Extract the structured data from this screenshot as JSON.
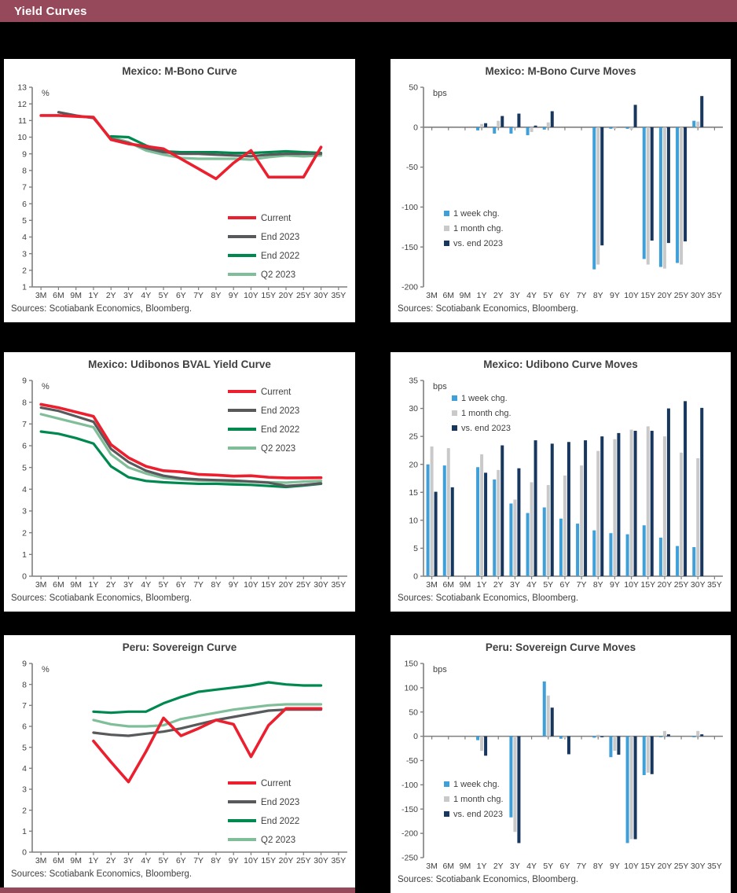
{
  "header": {
    "title": "Yield Curves"
  },
  "colors": {
    "header_bar": "#95495B",
    "current_red": "#EC1F2F",
    "end2023_gray": "#58595B",
    "end2022_green": "#00894E",
    "q2_2023_green": "#7FBE98",
    "week_blue": "#3F9FD8",
    "month_gray": "#C9C9C9",
    "vs_end_navy": "#17375E",
    "axis_gray": "#7f7f7f",
    "text_gray": "#404040"
  },
  "sources_note": "Sources: Scotiabank Economics, Bloomberg.",
  "chart_data": [
    {
      "type": "line",
      "title": "Mexico: M-Bono Curve",
      "unit": "%",
      "sources": "Sources: Scotiabank Economics, Bloomberg.",
      "categories": [
        "3M",
        "6M",
        "9M",
        "1Y",
        "2Y",
        "3Y",
        "4Y",
        "5Y",
        "6Y",
        "7Y",
        "8Y",
        "9Y",
        "10Y",
        "15Y",
        "20Y",
        "25Y",
        "30Y",
        "35Y"
      ],
      "ylim": [
        1,
        13
      ],
      "ystep": 1,
      "legend_position": "bottom-right",
      "series": [
        {
          "name": "Current",
          "color": "#EC1F2F",
          "values": [
            11.3,
            11.3,
            11.25,
            11.2,
            9.85,
            9.6,
            9.45,
            9.3,
            8.7,
            8.1,
            7.5,
            8.45,
            9.2,
            7.6,
            7.6,
            7.6,
            9.4,
            null
          ]
        },
        {
          "name": "End 2023",
          "color": "#58595B",
          "values": [
            null,
            11.5,
            11.3,
            11.15,
            9.9,
            9.65,
            9.35,
            9.1,
            9.0,
            9.0,
            8.95,
            8.9,
            8.85,
            8.95,
            9.0,
            9.0,
            9.0,
            null
          ]
        },
        {
          "name": "End 2022",
          "color": "#00894E",
          "values": [
            null,
            null,
            null,
            null,
            10.05,
            10.0,
            9.5,
            9.15,
            9.1,
            9.1,
            9.1,
            9.05,
            9.05,
            9.1,
            9.15,
            9.1,
            9.05,
            null
          ]
        },
        {
          "name": "Q2 2023",
          "color": "#7FBE98",
          "values": [
            null,
            null,
            null,
            null,
            10.0,
            9.7,
            9.2,
            8.95,
            8.75,
            8.7,
            8.7,
            8.7,
            8.65,
            8.8,
            8.9,
            8.85,
            8.9,
            null
          ]
        }
      ]
    },
    {
      "type": "bar",
      "title": "Mexico: M-Bono Curve Moves",
      "unit": "bps",
      "sources": "Sources: Scotiabank Economics, Bloomberg.",
      "categories": [
        "3M",
        "6M",
        "9M",
        "1Y",
        "2Y",
        "3Y",
        "4Y",
        "5Y",
        "6Y",
        "7Y",
        "8Y",
        "9Y",
        "10Y",
        "15Y",
        "20Y",
        "25Y",
        "30Y",
        "35Y"
      ],
      "ylim": [
        -200,
        50
      ],
      "ystep": 50,
      "legend_position": "bottom-left",
      "series": [
        {
          "name": "1 week chg.",
          "color": "#3F9FD8",
          "values": [
            0,
            0,
            0,
            -4,
            -8,
            -8,
            -10,
            -3,
            0,
            0,
            -178,
            -2,
            -2,
            -165,
            -175,
            -170,
            8,
            0
          ]
        },
        {
          "name": "1 month chg.",
          "color": "#C9C9C9",
          "values": [
            0,
            0,
            0,
            4,
            8,
            1,
            -6,
            6,
            0,
            0,
            -172,
            -2,
            -3,
            -172,
            -177,
            -172,
            7,
            0
          ]
        },
        {
          "name": "vs. end 2023",
          "color": "#17375E",
          "values": [
            0,
            0,
            0,
            5,
            14,
            17,
            2,
            20,
            0,
            0,
            -148,
            0,
            28,
            -142,
            -145,
            -143,
            39,
            0
          ]
        }
      ]
    },
    {
      "type": "line",
      "title": "Mexico: Udibonos BVAL Yield Curve",
      "unit": "%",
      "sources": "Sources: Scotiabank Economics, Bloomberg.",
      "categories": [
        "3M",
        "6M",
        "9M",
        "1Y",
        "2Y",
        "3Y",
        "4Y",
        "5Y",
        "6Y",
        "7Y",
        "8Y",
        "9Y",
        "10Y",
        "15Y",
        "20Y",
        "25Y",
        "30Y",
        "35Y"
      ],
      "ylim": [
        0,
        9
      ],
      "ystep": 1,
      "legend_position": "top-right",
      "series": [
        {
          "name": "Current",
          "color": "#EC1F2F",
          "values": [
            7.9,
            7.75,
            7.55,
            7.35,
            6.05,
            5.45,
            5.05,
            4.85,
            4.8,
            4.68,
            4.65,
            4.6,
            4.62,
            4.55,
            4.52,
            4.52,
            4.53,
            null
          ]
        },
        {
          "name": "End 2023",
          "color": "#58595B",
          "values": [
            7.75,
            7.6,
            7.35,
            7.1,
            5.85,
            5.25,
            4.85,
            4.62,
            4.5,
            4.45,
            4.42,
            4.4,
            4.35,
            4.3,
            4.15,
            4.2,
            4.27,
            null
          ]
        },
        {
          "name": "End 2022",
          "color": "#00894E",
          "values": [
            6.65,
            6.55,
            6.35,
            6.1,
            5.05,
            4.55,
            4.38,
            4.32,
            4.28,
            4.25,
            4.25,
            4.22,
            4.2,
            4.15,
            4.1,
            4.17,
            4.25,
            null
          ]
        },
        {
          "name": "Q2 2023",
          "color": "#7FBE98",
          "values": [
            7.45,
            7.25,
            7.05,
            6.85,
            5.6,
            5.0,
            4.72,
            4.52,
            4.45,
            4.4,
            4.38,
            4.35,
            4.35,
            4.32,
            4.3,
            4.35,
            4.38,
            null
          ]
        }
      ]
    },
    {
      "type": "bar",
      "title": "Mexico: Udibono Curve Moves",
      "unit": "bps",
      "sources": "Sources: Scotiabank Economics, Bloomberg.",
      "categories": [
        "3M",
        "6M",
        "9M",
        "1Y",
        "2Y",
        "3Y",
        "4Y",
        "5Y",
        "6Y",
        "7Y",
        "8Y",
        "9Y",
        "10Y",
        "15Y",
        "20Y",
        "25Y",
        "30Y",
        "35Y"
      ],
      "ylim": [
        0,
        35
      ],
      "ystep": 5,
      "legend_position": "top-left",
      "series": [
        {
          "name": "1 week chg.",
          "color": "#3F9FD8",
          "values": [
            20,
            19.8,
            0,
            19.5,
            17.3,
            13,
            11.3,
            12.3,
            10.3,
            9.4,
            8.2,
            7.7,
            7.5,
            9.1,
            6.9,
            5.4,
            5.2,
            0
          ]
        },
        {
          "name": "1 month chg.",
          "color": "#C9C9C9",
          "values": [
            23.2,
            22.9,
            0,
            21.8,
            19,
            13.7,
            16.8,
            16.3,
            18,
            19.8,
            22.4,
            24.5,
            26.2,
            26.8,
            25,
            22.1,
            21.1,
            0
          ]
        },
        {
          "name": "vs. end 2023",
          "color": "#17375E",
          "values": [
            15.1,
            15.9,
            0,
            18.5,
            23.4,
            19.3,
            24.3,
            23.7,
            24,
            24.3,
            25,
            25.6,
            26,
            26,
            30,
            31.3,
            30.1,
            0
          ]
        }
      ]
    },
    {
      "type": "line",
      "title": "Peru: Sovereign Curve",
      "unit": "%",
      "sources": "Sources: Scotiabank Economics, Bloomberg.",
      "categories": [
        "3M",
        "6M",
        "9M",
        "1Y",
        "2Y",
        "3Y",
        "4Y",
        "5Y",
        "6Y",
        "7Y",
        "8Y",
        "9Y",
        "10Y",
        "15Y",
        "20Y",
        "25Y",
        "30Y",
        "35Y"
      ],
      "ylim": [
        0,
        9
      ],
      "ystep": 1,
      "legend_position": "bottom-right",
      "series": [
        {
          "name": "Current",
          "color": "#EC1F2F",
          "values": [
            null,
            null,
            null,
            5.3,
            4.3,
            3.35,
            4.8,
            6.4,
            5.55,
            5.9,
            6.3,
            6.1,
            4.55,
            6.05,
            6.85,
            6.85,
            6.85,
            null
          ]
        },
        {
          "name": "End 2023",
          "color": "#58595B",
          "values": [
            null,
            null,
            null,
            5.7,
            5.6,
            5.55,
            5.65,
            5.75,
            5.9,
            6.1,
            6.3,
            6.45,
            6.6,
            6.75,
            6.8,
            6.8,
            6.8,
            null
          ]
        },
        {
          "name": "End 2022",
          "color": "#00894E",
          "values": [
            null,
            null,
            null,
            6.7,
            6.65,
            6.7,
            6.7,
            7.1,
            7.4,
            7.65,
            7.75,
            7.85,
            7.95,
            8.1,
            8.0,
            7.95,
            7.95,
            null
          ]
        },
        {
          "name": "Q2 2023",
          "color": "#7FBE98",
          "values": [
            null,
            null,
            null,
            6.3,
            6.1,
            6.0,
            6.0,
            6.05,
            6.35,
            6.5,
            6.65,
            6.8,
            6.9,
            7.0,
            7.05,
            7.05,
            7.05,
            null
          ]
        }
      ]
    },
    {
      "type": "bar",
      "title": "Peru: Sovereign Curve Moves",
      "unit": "bps",
      "sources": "Sources: Scotiabank Economics, Bloomberg.",
      "categories": [
        "3M",
        "6M",
        "9M",
        "1Y",
        "2Y",
        "3Y",
        "4Y",
        "5Y",
        "6Y",
        "7Y",
        "8Y",
        "9Y",
        "10Y",
        "15Y",
        "20Y",
        "25Y",
        "30Y",
        "35Y"
      ],
      "ylim": [
        -250,
        150
      ],
      "ystep": 50,
      "legend_position": "bottom-left",
      "series": [
        {
          "name": "1 week chg.",
          "color": "#3F9FD8",
          "values": [
            0,
            0,
            0,
            -8,
            0,
            -167,
            0,
            113,
            -5,
            0,
            -3,
            -43,
            -220,
            -80,
            -2,
            0,
            -2,
            0
          ]
        },
        {
          "name": "1 month chg.",
          "color": "#C9C9C9",
          "values": [
            0,
            0,
            0,
            -30,
            0,
            -197,
            0,
            84,
            -4,
            0,
            3,
            -30,
            -212,
            -75,
            11,
            0,
            11,
            0
          ]
        },
        {
          "name": "vs. end 2023",
          "color": "#17375E",
          "values": [
            0,
            0,
            0,
            -40,
            0,
            -220,
            0,
            59,
            -37,
            0,
            -2,
            -38,
            -212,
            -78,
            4,
            0,
            4,
            0
          ]
        }
      ]
    }
  ]
}
